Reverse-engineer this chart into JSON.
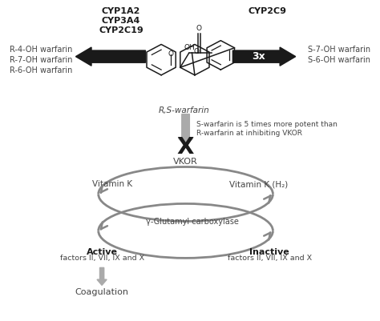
{
  "fig_width": 4.74,
  "fig_height": 4.01,
  "cyp_left_label": "CYP1A2\nCYP3A4\nCYP2C19",
  "cyp_right_label": "CYP2C9",
  "left_products": "R-4-OH warfarin\nR-7-OH warfarin\nR-6-OH warfarin",
  "right_products": "S-7-OH warfarin\nS-6-OH warfarin",
  "warfarin_label": "R,S-warfarin",
  "potency_note": "S-warfarin is 5 times more potent than\nR-warfarin at inhibiting VKOR",
  "vkor_label": "VKOR",
  "vitk_label": "Vitamin K",
  "vitkh2_label": "Vitamin K (H₂)",
  "glutamyl_label": "γ-Glutamyl carboxylase",
  "active_label": "Active",
  "active_factors": "factors II, VII, IX and X",
  "inactive_label": "Inactive",
  "inactive_factors": "factors II, VII, IX and X",
  "coagulation_label": "Coagulation",
  "threetimes_label": "3x",
  "black": "#1a1a1a",
  "gray": "#888888",
  "textcol": "#444444"
}
